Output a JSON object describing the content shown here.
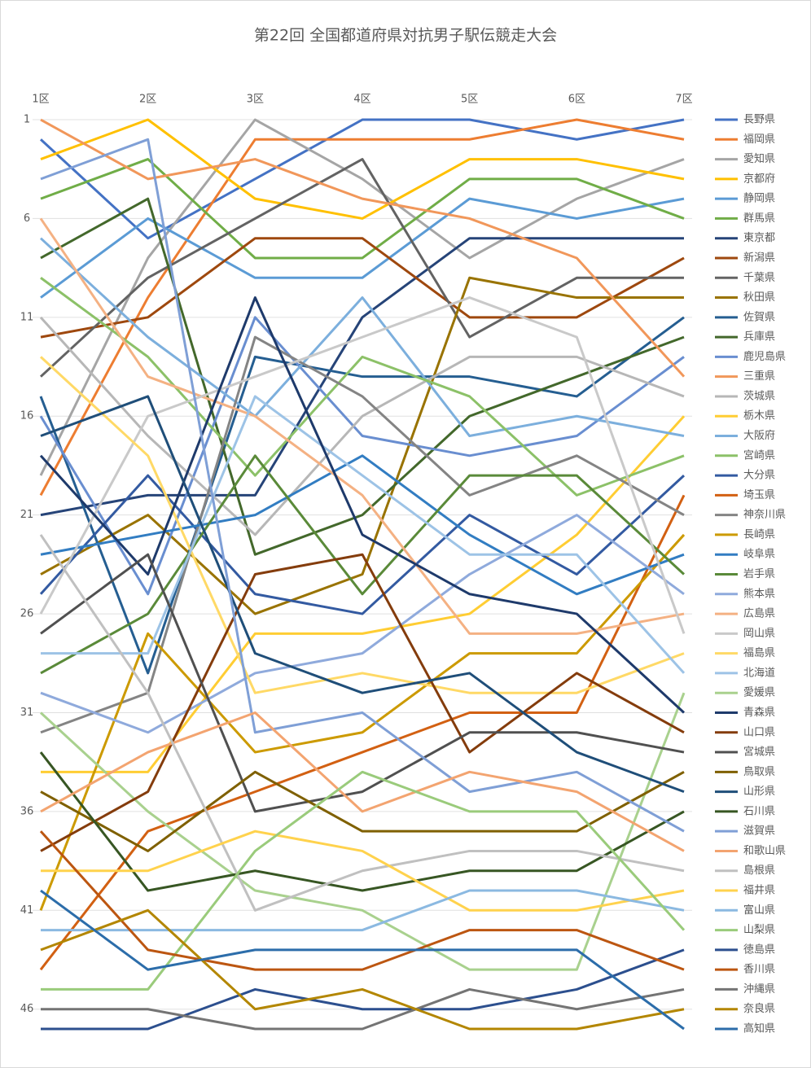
{
  "chart_data": {
    "type": "line",
    "title": "第22回 全国都道府県対抗男子駅伝競走大会",
    "categories": [
      "1区",
      "2区",
      "3区",
      "4区",
      "5区",
      "6区",
      "7区"
    ],
    "ylim": [
      1,
      47
    ],
    "y_reversed": true,
    "yticks": [
      1,
      6,
      11,
      16,
      21,
      26,
      31,
      36,
      41,
      46
    ],
    "grid": true,
    "legend": "right",
    "series": [
      {
        "name": "長野県",
        "color": "#4472C4",
        "values": [
          2,
          7,
          4,
          1,
          1,
          2,
          1
        ]
      },
      {
        "name": "福岡県",
        "color": "#ED7D31",
        "values": [
          20,
          10,
          2,
          2,
          2,
          1,
          2
        ]
      },
      {
        "name": "愛知県",
        "color": "#A5A5A5",
        "values": [
          19,
          8,
          1,
          4,
          8,
          5,
          3
        ]
      },
      {
        "name": "京都府",
        "color": "#FFC000",
        "values": [
          3,
          1,
          5,
          6,
          3,
          3,
          4
        ]
      },
      {
        "name": "静岡県",
        "color": "#5B9BD5",
        "values": [
          10,
          6,
          9,
          9,
          5,
          6,
          5
        ]
      },
      {
        "name": "群馬県",
        "color": "#70AD47",
        "values": [
          5,
          3,
          8,
          8,
          4,
          4,
          6
        ]
      },
      {
        "name": "東京都",
        "color": "#264478",
        "values": [
          21,
          20,
          20,
          11,
          7,
          7,
          7
        ]
      },
      {
        "name": "新潟県",
        "color": "#9E480E",
        "values": [
          12,
          11,
          7,
          7,
          11,
          11,
          8
        ]
      },
      {
        "name": "千葉県",
        "color": "#636363",
        "values": [
          14,
          9,
          6,
          3,
          12,
          9,
          9
        ]
      },
      {
        "name": "秋田県",
        "color": "#997300",
        "values": [
          24,
          21,
          26,
          24,
          9,
          10,
          10
        ]
      },
      {
        "name": "佐賀県",
        "color": "#255E91",
        "values": [
          15,
          29,
          13,
          14,
          14,
          15,
          11
        ]
      },
      {
        "name": "兵庫県",
        "color": "#43682B",
        "values": [
          8,
          5,
          23,
          21,
          16,
          14,
          12
        ]
      },
      {
        "name": "鹿児島県",
        "color": "#698ED0",
        "values": [
          16,
          25,
          11,
          17,
          18,
          17,
          13
        ]
      },
      {
        "name": "三重県",
        "color": "#F1975A",
        "values": [
          1,
          4,
          3,
          5,
          6,
          8,
          14
        ]
      },
      {
        "name": "茨城県",
        "color": "#B7B7B7",
        "values": [
          11,
          17,
          22,
          16,
          13,
          13,
          15
        ]
      },
      {
        "name": "栃木県",
        "color": "#FFCD33",
        "values": [
          34,
          34,
          27,
          27,
          26,
          22,
          16
        ]
      },
      {
        "name": "大阪府",
        "color": "#7CAFDD",
        "values": [
          7,
          12,
          16,
          10,
          17,
          16,
          17
        ]
      },
      {
        "name": "宮崎県",
        "color": "#8CC168",
        "values": [
          9,
          13,
          19,
          13,
          15,
          20,
          18
        ]
      },
      {
        "name": "大分県",
        "color": "#335AA1",
        "values": [
          25,
          19,
          25,
          26,
          21,
          24,
          19
        ]
      },
      {
        "name": "埼玉県",
        "color": "#D26012",
        "values": [
          44,
          37,
          35,
          33,
          31,
          31,
          20
        ]
      },
      {
        "name": "神奈川県",
        "color": "#848484",
        "values": [
          32,
          30,
          12,
          15,
          20,
          18,
          21
        ]
      },
      {
        "name": "長崎県",
        "color": "#CC9A00",
        "values": [
          41,
          27,
          33,
          32,
          28,
          28,
          22
        ]
      },
      {
        "name": "岐阜県",
        "color": "#327DC2",
        "values": [
          23,
          22,
          21,
          18,
          22,
          25,
          23
        ]
      },
      {
        "name": "岩手県",
        "color": "#5A8A39",
        "values": [
          29,
          26,
          18,
          25,
          19,
          19,
          24
        ]
      },
      {
        "name": "熊本県",
        "color": "#8FAADC",
        "values": [
          30,
          32,
          29,
          28,
          24,
          21,
          25
        ]
      },
      {
        "name": "広島県",
        "color": "#F4B183",
        "values": [
          6,
          14,
          16,
          20,
          27,
          27,
          26
        ]
      },
      {
        "name": "岡山県",
        "color": "#C9C9C9",
        "values": [
          26,
          16,
          14,
          12,
          10,
          12,
          27
        ]
      },
      {
        "name": "福島県",
        "color": "#FFD966",
        "values": [
          13,
          18,
          30,
          29,
          30,
          30,
          28
        ]
      },
      {
        "name": "北海道",
        "color": "#9DC3E6",
        "values": [
          28,
          28,
          15,
          19,
          23,
          23,
          29
        ]
      },
      {
        "name": "愛媛県",
        "color": "#A9D18E",
        "values": [
          31,
          36,
          40,
          41,
          44,
          44,
          30
        ]
      },
      {
        "name": "青森県",
        "color": "#1E3A6B",
        "values": [
          18,
          24,
          10,
          22,
          25,
          26,
          31
        ]
      },
      {
        "name": "山口県",
        "color": "#843C0C",
        "values": [
          38,
          35,
          24,
          23,
          33,
          29,
          32
        ]
      },
      {
        "name": "宮城県",
        "color": "#505050",
        "values": [
          27,
          23,
          36,
          35,
          32,
          32,
          33
        ]
      },
      {
        "name": "鳥取県",
        "color": "#7F6000",
        "values": [
          35,
          38,
          34,
          37,
          37,
          37,
          34
        ]
      },
      {
        "name": "山形県",
        "color": "#1F4E79",
        "values": [
          17,
          15,
          28,
          30,
          29,
          33,
          35
        ]
      },
      {
        "name": "石川県",
        "color": "#375623",
        "values": [
          33,
          40,
          39,
          40,
          39,
          39,
          36
        ]
      },
      {
        "name": "滋賀県",
        "color": "#7F9FD6",
        "values": [
          4,
          2,
          32,
          31,
          35,
          34,
          37
        ]
      },
      {
        "name": "和歌山県",
        "color": "#F3A470",
        "values": [
          36,
          33,
          31,
          36,
          34,
          35,
          38
        ]
      },
      {
        "name": "島根県",
        "color": "#C0C0C0",
        "values": [
          22,
          30,
          41,
          39,
          38,
          38,
          39
        ]
      },
      {
        "name": "福井県",
        "color": "#FFD24D",
        "values": [
          39,
          39,
          37,
          38,
          41,
          41,
          40
        ]
      },
      {
        "name": "富山県",
        "color": "#8BB9E1",
        "values": [
          42,
          42,
          42,
          42,
          40,
          40,
          41
        ]
      },
      {
        "name": "山梨県",
        "color": "#9ACB7B",
        "values": [
          45,
          45,
          38,
          34,
          36,
          36,
          42
        ]
      },
      {
        "name": "徳島県",
        "color": "#2C4F8E",
        "values": [
          47,
          47,
          45,
          46,
          46,
          45,
          43
        ]
      },
      {
        "name": "香川県",
        "color": "#BC5611",
        "values": [
          37,
          43,
          44,
          44,
          42,
          42,
          44
        ]
      },
      {
        "name": "沖縄県",
        "color": "#747474",
        "values": [
          46,
          46,
          47,
          47,
          45,
          46,
          45
        ]
      },
      {
        "name": "奈良県",
        "color": "#B38600",
        "values": [
          43,
          41,
          46,
          45,
          47,
          47,
          46
        ]
      },
      {
        "name": "高知県",
        "color": "#2C6DAA",
        "values": [
          40,
          44,
          43,
          43,
          43,
          43,
          47
        ]
      }
    ]
  }
}
